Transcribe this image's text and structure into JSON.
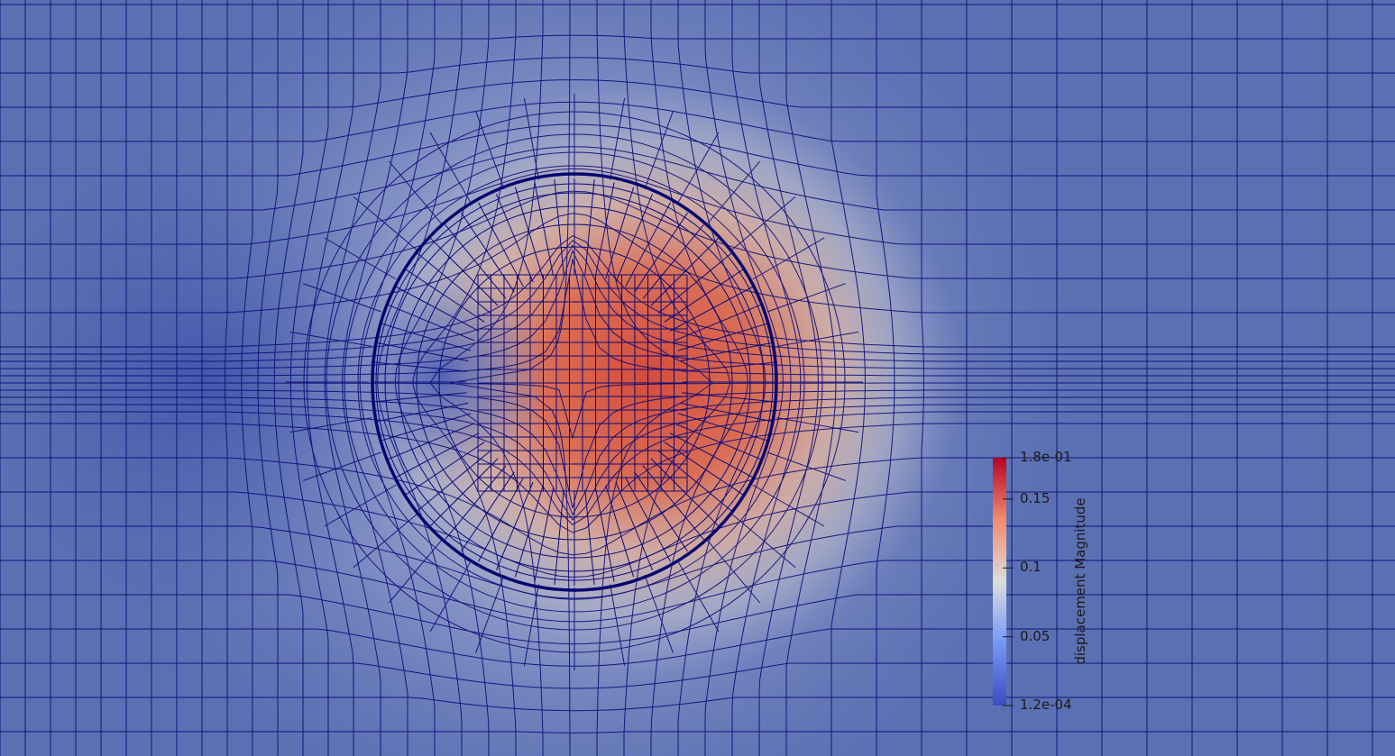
{
  "colormap": {
    "name": "Cool to Warm",
    "low_color": "#3b4cc0",
    "mid_color": "#dddcdc",
    "high_color": "#b40426"
  },
  "mesh_line_color": "#0a0a78",
  "legend": {
    "title": "displacement Magnitude",
    "range": [
      0.00012,
      0.18
    ],
    "ticks": [
      {
        "value": 0.18,
        "label": "1.8e-01"
      },
      {
        "value": 0.15,
        "label": "0.15"
      },
      {
        "value": 0.1,
        "label": "0.1"
      },
      {
        "value": 0.05,
        "label": "0.05"
      },
      {
        "value": 0.00012,
        "label": "1.2e-04"
      }
    ]
  }
}
